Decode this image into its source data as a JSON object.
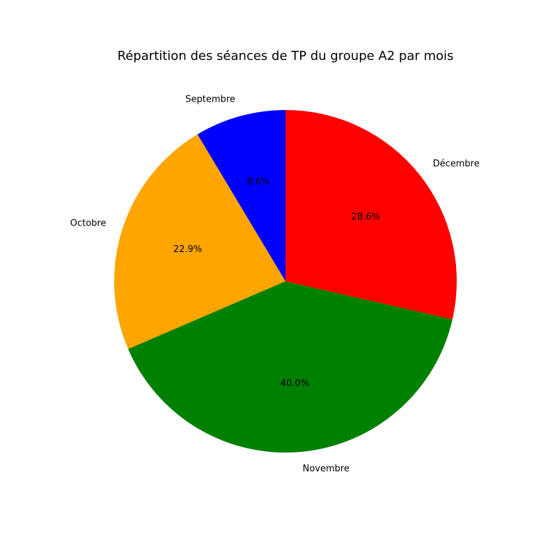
{
  "chart_data": {
    "type": "pie",
    "title": "Répartition des séances de TP du groupe A2 par mois",
    "categories": [
      "Septembre",
      "Octobre",
      "Novembre",
      "Décembre"
    ],
    "values": [
      8.6,
      22.9,
      40.0,
      28.6
    ],
    "percent_labels": [
      "8.6%",
      "22.9%",
      "40.0%",
      "28.6%"
    ],
    "colors": [
      "#0000ff",
      "#ffa500",
      "#008000",
      "#ff0000"
    ],
    "start_angle_deg": 90,
    "direction": "counterclockwise"
  }
}
